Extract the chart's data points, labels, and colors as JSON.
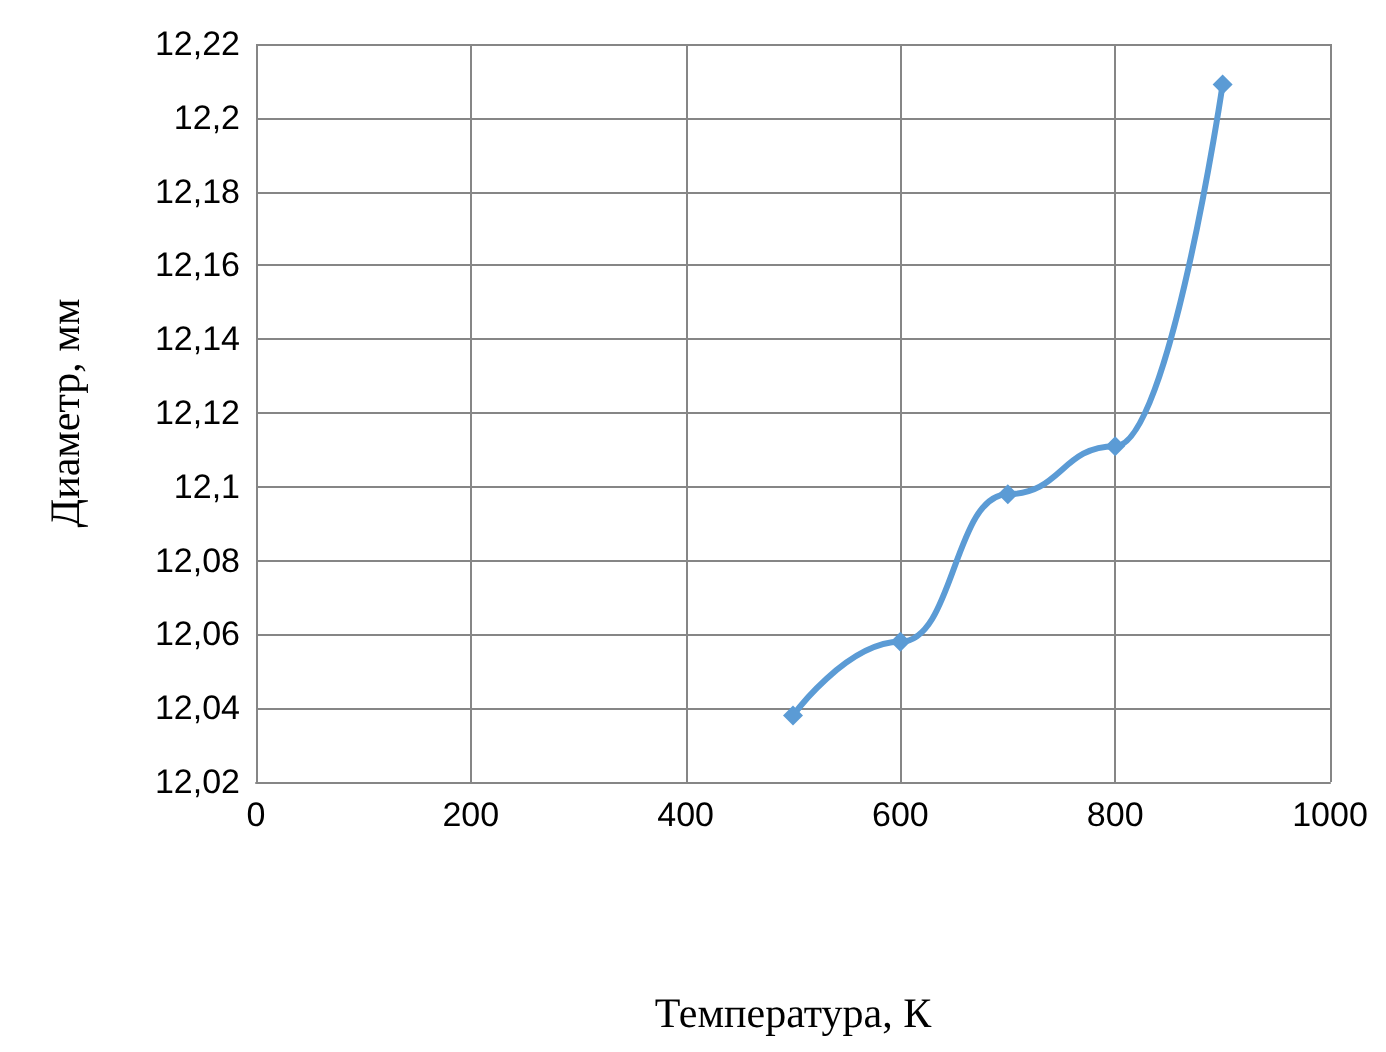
{
  "chart_data": {
    "type": "line",
    "xlabel": "Температура, К",
    "ylabel": "Диаметр, мм",
    "x": [
      500,
      600,
      700,
      800,
      900
    ],
    "series": [
      {
        "color": "#5b9bd5",
        "values": [
          12.038,
          12.058,
          12.098,
          12.111,
          12.209
        ]
      }
    ],
    "xlim": [
      0,
      1000
    ],
    "xticks": [
      0,
      200,
      400,
      600,
      800,
      1000
    ],
    "ylim": [
      12.02,
      12.22
    ],
    "yticks": [
      {
        "value": 12.02,
        "label": "12,02"
      },
      {
        "value": 12.04,
        "label": "12,04"
      },
      {
        "value": 12.06,
        "label": "12,06"
      },
      {
        "value": 12.08,
        "label": "12,08"
      },
      {
        "value": 12.1,
        "label": "12,1"
      },
      {
        "value": 12.12,
        "label": "12,12"
      },
      {
        "value": 12.14,
        "label": "12,14"
      },
      {
        "value": 12.16,
        "label": "12,16"
      },
      {
        "value": 12.18,
        "label": "12,18"
      },
      {
        "value": 12.2,
        "label": "12,2"
      },
      {
        "value": 12.22,
        "label": "12,22"
      }
    ],
    "grid": true,
    "marker": "diamond",
    "line_style": "solid"
  }
}
